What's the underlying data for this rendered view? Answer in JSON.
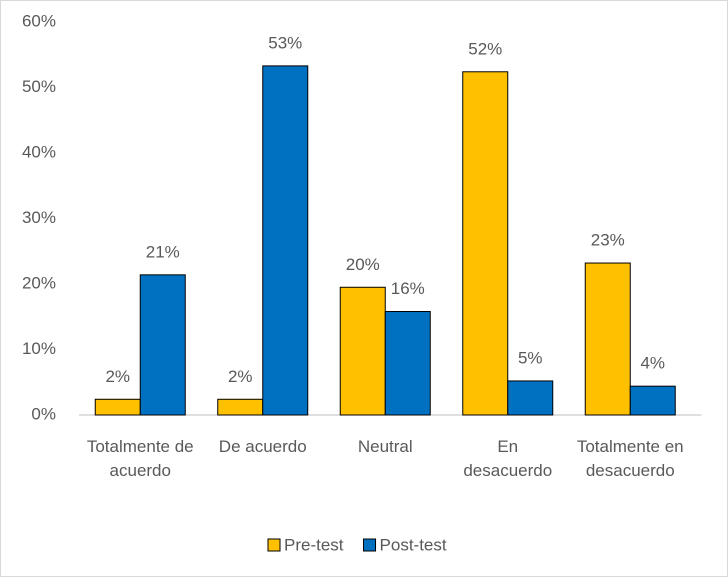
{
  "chart_data": {
    "type": "bar",
    "categories": [
      "Totalmente de acuerdo",
      "De acuerdo",
      "Neutral",
      "En desacuerdo",
      "Totalmente en desacuerdo"
    ],
    "series": [
      {
        "name": "Pre-test",
        "color": "#ffc000",
        "values": [
          2.4,
          2.4,
          19.5,
          52.4,
          23.2
        ],
        "value_labels": [
          "2%",
          "2%",
          "20%",
          "52%",
          "23%"
        ]
      },
      {
        "name": "Post-test",
        "color": "#0070c0",
        "values": [
          21.4,
          53.3,
          15.8,
          5.2,
          4.4
        ],
        "value_labels": [
          "21%",
          "53%",
          "16%",
          "5%",
          "4%"
        ]
      }
    ],
    "ylim": [
      0,
      60
    ],
    "yticks": [
      {
        "value": 0,
        "label": "0%"
      },
      {
        "value": 10,
        "label": "10%"
      },
      {
        "value": 20,
        "label": "20%"
      },
      {
        "value": 30,
        "label": "30%"
      },
      {
        "value": 40,
        "label": "40%"
      },
      {
        "value": 50,
        "label": "50%"
      },
      {
        "value": 60,
        "label": "60%"
      }
    ],
    "grid": false,
    "legend": "bottom"
  }
}
